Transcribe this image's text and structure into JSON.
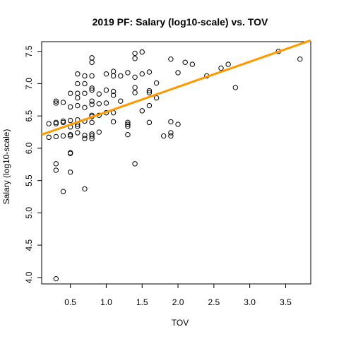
{
  "chart_data": {
    "type": "scatter",
    "title": "2019 PF: Salary (log10-scale) vs. TOV",
    "xlabel": "TOV",
    "ylabel": "Salary (log10-scale)",
    "xlim": [
      0.1,
      3.85
    ],
    "ylim": [
      3.9,
      7.65
    ],
    "x_ticks": [
      0.5,
      1.0,
      1.5,
      2.0,
      2.5,
      3.0,
      3.5
    ],
    "x_tick_labels": [
      "0.5",
      "1.0",
      "1.5",
      "2.0",
      "2.5",
      "3.0",
      "3.5"
    ],
    "y_ticks": [
      4.0,
      4.5,
      5.0,
      5.5,
      6.0,
      6.5,
      7.0,
      7.5
    ],
    "y_tick_labels": [
      "4.0",
      "4.5",
      "5.0",
      "5.5",
      "6.0",
      "6.5",
      "7.0",
      "7.5"
    ],
    "grid": false,
    "point_color": "#000000",
    "fit_line_color": "#FF9900",
    "fit_line": {
      "x": [
        0.1,
        3.85
      ],
      "y": [
        6.21,
        7.67
      ]
    },
    "points": [
      {
        "x": 0.2,
        "y": 6.38
      },
      {
        "x": 0.2,
        "y": 6.17
      },
      {
        "x": 0.3,
        "y": 6.73
      },
      {
        "x": 0.3,
        "y": 6.7
      },
      {
        "x": 0.3,
        "y": 6.4
      },
      {
        "x": 0.3,
        "y": 6.38
      },
      {
        "x": 0.3,
        "y": 6.18
      },
      {
        "x": 0.3,
        "y": 5.76
      },
      {
        "x": 0.3,
        "y": 5.66
      },
      {
        "x": 0.3,
        "y": 3.98
      },
      {
        "x": 0.4,
        "y": 6.71
      },
      {
        "x": 0.4,
        "y": 6.42
      },
      {
        "x": 0.4,
        "y": 6.4
      },
      {
        "x": 0.4,
        "y": 6.19
      },
      {
        "x": 0.4,
        "y": 5.33
      },
      {
        "x": 0.5,
        "y": 6.85
      },
      {
        "x": 0.5,
        "y": 6.64
      },
      {
        "x": 0.5,
        "y": 6.43
      },
      {
        "x": 0.5,
        "y": 6.33
      },
      {
        "x": 0.5,
        "y": 6.21
      },
      {
        "x": 0.5,
        "y": 6.19
      },
      {
        "x": 0.5,
        "y": 5.93
      },
      {
        "x": 0.5,
        "y": 5.92
      },
      {
        "x": 0.5,
        "y": 5.63
      },
      {
        "x": 0.6,
        "y": 7.15
      },
      {
        "x": 0.6,
        "y": 7.0
      },
      {
        "x": 0.6,
        "y": 6.85
      },
      {
        "x": 0.6,
        "y": 6.78
      },
      {
        "x": 0.6,
        "y": 6.66
      },
      {
        "x": 0.6,
        "y": 6.44
      },
      {
        "x": 0.6,
        "y": 6.37
      },
      {
        "x": 0.6,
        "y": 6.34
      },
      {
        "x": 0.6,
        "y": 6.24
      },
      {
        "x": 0.7,
        "y": 7.12
      },
      {
        "x": 0.7,
        "y": 7.0
      },
      {
        "x": 0.7,
        "y": 6.85
      },
      {
        "x": 0.7,
        "y": 6.63
      },
      {
        "x": 0.7,
        "y": 6.42
      },
      {
        "x": 0.7,
        "y": 6.2
      },
      {
        "x": 0.7,
        "y": 6.15
      },
      {
        "x": 0.7,
        "y": 5.37
      },
      {
        "x": 0.8,
        "y": 7.4
      },
      {
        "x": 0.8,
        "y": 7.33
      },
      {
        "x": 0.8,
        "y": 7.12
      },
      {
        "x": 0.8,
        "y": 6.93
      },
      {
        "x": 0.8,
        "y": 6.9
      },
      {
        "x": 0.8,
        "y": 6.73
      },
      {
        "x": 0.8,
        "y": 6.68
      },
      {
        "x": 0.8,
        "y": 6.51
      },
      {
        "x": 0.8,
        "y": 6.49
      },
      {
        "x": 0.8,
        "y": 6.4
      },
      {
        "x": 0.8,
        "y": 6.22
      },
      {
        "x": 0.8,
        "y": 6.19
      },
      {
        "x": 0.8,
        "y": 6.15
      },
      {
        "x": 0.9,
        "y": 6.84
      },
      {
        "x": 0.9,
        "y": 6.69
      },
      {
        "x": 0.9,
        "y": 6.51
      },
      {
        "x": 0.9,
        "y": 6.25
      },
      {
        "x": 1.0,
        "y": 7.15
      },
      {
        "x": 1.0,
        "y": 6.9
      },
      {
        "x": 1.0,
        "y": 6.7
      },
      {
        "x": 1.0,
        "y": 6.55
      },
      {
        "x": 1.1,
        "y": 7.19
      },
      {
        "x": 1.1,
        "y": 7.12
      },
      {
        "x": 1.1,
        "y": 6.88
      },
      {
        "x": 1.1,
        "y": 6.82
      },
      {
        "x": 1.1,
        "y": 6.55
      },
      {
        "x": 1.1,
        "y": 6.41
      },
      {
        "x": 1.2,
        "y": 7.12
      },
      {
        "x": 1.2,
        "y": 6.73
      },
      {
        "x": 1.3,
        "y": 7.17
      },
      {
        "x": 1.3,
        "y": 6.4
      },
      {
        "x": 1.3,
        "y": 6.37
      },
      {
        "x": 1.3,
        "y": 6.34
      },
      {
        "x": 1.3,
        "y": 6.21
      },
      {
        "x": 1.4,
        "y": 7.47
      },
      {
        "x": 1.4,
        "y": 7.39
      },
      {
        "x": 1.4,
        "y": 7.1
      },
      {
        "x": 1.4,
        "y": 6.94
      },
      {
        "x": 1.4,
        "y": 6.86
      },
      {
        "x": 1.4,
        "y": 5.76
      },
      {
        "x": 1.5,
        "y": 7.49
      },
      {
        "x": 1.5,
        "y": 7.15
      },
      {
        "x": 1.5,
        "y": 6.58
      },
      {
        "x": 1.6,
        "y": 7.18
      },
      {
        "x": 1.6,
        "y": 6.89
      },
      {
        "x": 1.6,
        "y": 6.86
      },
      {
        "x": 1.6,
        "y": 6.66
      },
      {
        "x": 1.6,
        "y": 6.4
      },
      {
        "x": 1.7,
        "y": 7.01
      },
      {
        "x": 1.7,
        "y": 6.78
      },
      {
        "x": 1.8,
        "y": 6.19
      },
      {
        "x": 1.9,
        "y": 7.38
      },
      {
        "x": 1.9,
        "y": 6.41
      },
      {
        "x": 1.9,
        "y": 6.24
      },
      {
        "x": 1.9,
        "y": 6.19
      },
      {
        "x": 2.0,
        "y": 7.17
      },
      {
        "x": 2.0,
        "y": 6.37
      },
      {
        "x": 2.1,
        "y": 7.33
      },
      {
        "x": 2.2,
        "y": 7.3
      },
      {
        "x": 2.4,
        "y": 7.12
      },
      {
        "x": 2.6,
        "y": 7.24
      },
      {
        "x": 2.7,
        "y": 7.3
      },
      {
        "x": 2.8,
        "y": 6.94
      },
      {
        "x": 3.4,
        "y": 7.5
      },
      {
        "x": 3.7,
        "y": 7.38
      }
    ]
  }
}
